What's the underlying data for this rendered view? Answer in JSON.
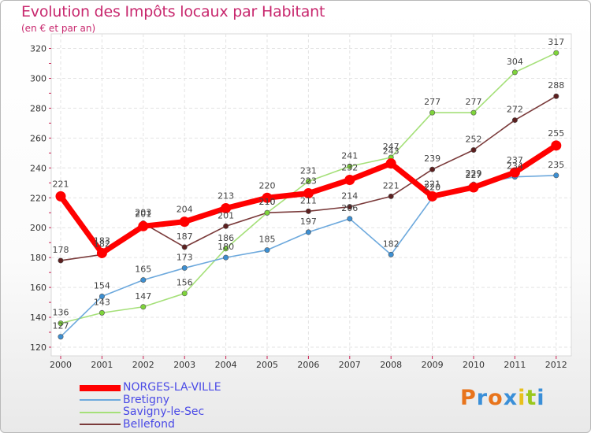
{
  "title": "Evolution des Impôts locaux par Habitant",
  "subtitle": "(en € et par an)",
  "brand": "Proxiti",
  "brand_colors": [
    "#e8741c",
    "#3a8fd8",
    "#e8741c",
    "#3a8fd8",
    "#e8c01c",
    "#9ac81c",
    "#3a8fd8"
  ],
  "chart_data": {
    "type": "line",
    "title": "Evolution des Impôts locaux par Habitant",
    "subtitle": "(en € et par an)",
    "x": [
      "2000",
      "2001",
      "2002",
      "2003",
      "2004",
      "2005",
      "2006",
      "2007",
      "2008",
      "2009",
      "2010",
      "2011",
      "2012"
    ],
    "ylim": [
      120,
      320
    ],
    "yticks": [
      120,
      140,
      160,
      180,
      200,
      220,
      240,
      260,
      280,
      300,
      320
    ],
    "grid": true,
    "series": [
      {
        "name": "NORGES-LA-VILLE",
        "color": "#ff0000",
        "values": [
          221,
          183,
          201,
          204,
          213,
          220,
          223,
          232,
          243,
          221,
          227,
          237,
          255
        ]
      },
      {
        "name": "Bretigny",
        "color": "#6da9dd",
        "marker": "#3c8fd2",
        "values": [
          127,
          154,
          165,
          173,
          180,
          185,
          197,
          206,
          182,
          220,
          229,
          234,
          235
        ]
      },
      {
        "name": "Savigny-le-Sec",
        "color": "#a5e079",
        "marker": "#7ed43a",
        "values": [
          136,
          143,
          147,
          156,
          186,
          210,
          231,
          241,
          247,
          277,
          277,
          304,
          317
        ]
      },
      {
        "name": "Bellefond",
        "color": "#7a3a3a",
        "marker": "#5c1f1f",
        "values": [
          178,
          182,
          203,
          187,
          201,
          210,
          211,
          214,
          221,
          239,
          252,
          272,
          288
        ]
      }
    ]
  }
}
